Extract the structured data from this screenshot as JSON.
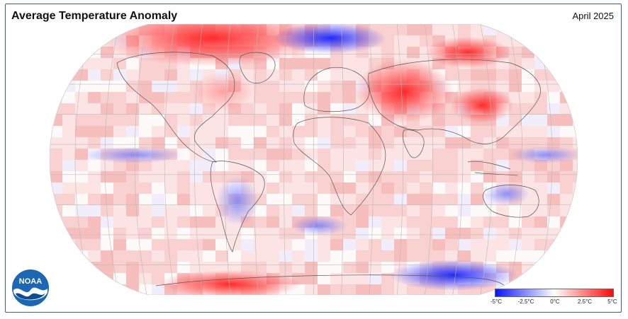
{
  "header": {
    "title": "Average Temperature Anomaly",
    "period": "April 2025"
  },
  "logo": {
    "text": "NOAA",
    "colors": {
      "outer": "#1b67b3",
      "inner": "#ffffff",
      "band": "#0f4c8f"
    }
  },
  "legend": {
    "ticks": [
      "-5°C",
      "-2.5°C",
      "0°C",
      "2.5°C",
      "5°C"
    ],
    "range": [
      -5,
      5
    ],
    "colors": {
      "cold": "#0a14ff",
      "neutral": "#ffffff",
      "warm": "#ff0a0a"
    }
  },
  "map": {
    "projection": "robinson",
    "anomaly_regions": [
      {
        "region": "North Atlantic / Greenland",
        "sign": "warm",
        "strength": "strong"
      },
      {
        "region": "Arctic north of Europe",
        "sign": "cold",
        "strength": "strong"
      },
      {
        "region": "Siberia / Central Asia",
        "sign": "warm",
        "strength": "strong"
      },
      {
        "region": "Australia interior",
        "sign": "cold",
        "strength": "moderate"
      },
      {
        "region": "Southern South America",
        "sign": "cold",
        "strength": "moderate"
      },
      {
        "region": "Antarctica (Pacific sector)",
        "sign": "cold",
        "strength": "strong"
      },
      {
        "region": "Antarctica (Atlantic sector)",
        "sign": "warm",
        "strength": "strong"
      }
    ]
  }
}
